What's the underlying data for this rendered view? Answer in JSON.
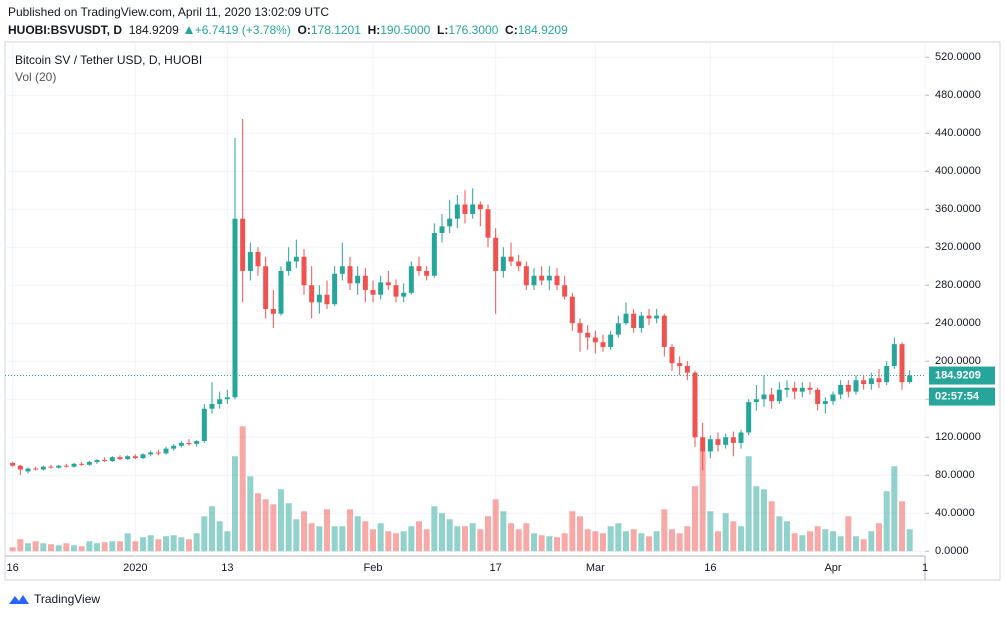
{
  "header": {
    "published": "Published on TradingView.com, April 11, 2020 13:02:09 UTC",
    "symbol": "HUOBI:BSVUSDT, D",
    "price": "184.9209",
    "change": "+6.7419 (+3.78%)",
    "o_label": "O:",
    "o": "178.1201",
    "h_label": "H:",
    "h": "190.5000",
    "l_label": "L:",
    "l": "176.3000",
    "c_label": "C:",
    "c": "184.9209"
  },
  "chart_data": {
    "type": "candlestick",
    "title": "Bitcoin SV / Tether USD, D, HUOBI",
    "volume_label": "Vol (20)",
    "last_price_label": "184.9209",
    "countdown": "02:57:54",
    "up_color": "#26a69a",
    "down_color": "#ef5350",
    "grid": true,
    "xlim": [
      -1,
      119
    ],
    "xticks": [
      {
        "value": 0,
        "label": "16"
      },
      {
        "value": 16,
        "label": "2020"
      },
      {
        "value": 28,
        "label": "13"
      },
      {
        "value": 47,
        "label": "Feb"
      },
      {
        "value": 63,
        "label": "17"
      },
      {
        "value": 76,
        "label": "Mar"
      },
      {
        "value": 91,
        "label": "16"
      },
      {
        "value": 107,
        "label": "Apr"
      },
      {
        "value": 119,
        "label": "1"
      }
    ],
    "ylim": [
      -5,
      536
    ],
    "yticks": [
      {
        "value": 0,
        "label": "0.0000"
      },
      {
        "value": 40,
        "label": "40.0000"
      },
      {
        "value": 80,
        "label": "80.0000"
      },
      {
        "value": 120,
        "label": "120.0000"
      },
      {
        "value": 160,
        "label": "160.0000"
      },
      {
        "value": 200,
        "label": "200.0000"
      },
      {
        "value": 240,
        "label": "240.0000"
      },
      {
        "value": 280,
        "label": "280.0000"
      },
      {
        "value": 320,
        "label": "320.0000"
      },
      {
        "value": 360,
        "label": "360.0000"
      },
      {
        "value": 400,
        "label": "400.0000"
      },
      {
        "value": 440,
        "label": "440.0000"
      },
      {
        "value": 480,
        "label": "480.0000"
      },
      {
        "value": 520,
        "label": "520.0000"
      }
    ],
    "open": [
      93,
      90,
      84,
      87,
      86,
      89,
      88,
      90,
      89,
      92,
      91,
      94,
      96,
      95,
      99,
      97,
      100,
      98,
      102,
      104,
      103,
      108,
      111,
      114,
      113,
      116,
      150,
      155,
      160,
      162,
      350,
      295,
      315,
      300,
      255,
      250,
      295,
      305,
      310,
      280,
      262,
      270,
      260,
      292,
      300,
      282,
      290,
      275,
      270,
      283,
      280,
      268,
      272,
      300,
      295,
      290,
      335,
      342,
      350,
      365,
      355,
      365,
      360,
      330,
      295,
      310,
      305,
      300,
      280,
      290,
      285,
      290,
      280,
      268,
      240,
      230,
      225,
      220,
      215,
      228,
      240,
      250,
      235,
      248,
      245,
      248,
      215,
      198,
      195,
      188,
      120,
      105,
      118,
      112,
      120,
      114,
      125,
      157,
      160,
      165,
      158,
      170,
      172,
      168,
      172,
      170,
      155,
      158,
      165,
      175,
      168,
      180,
      176,
      182,
      178,
      195,
      218,
      178.1201
    ],
    "high": [
      94,
      91,
      88,
      89,
      90,
      91,
      91,
      92,
      93,
      94,
      95,
      97,
      99,
      100,
      101,
      101,
      102,
      103,
      106,
      107,
      110,
      113,
      116,
      118,
      117,
      155,
      178,
      168,
      170,
      435,
      455,
      325,
      320,
      310,
      275,
      300,
      320,
      328,
      318,
      300,
      280,
      285,
      300,
      325,
      310,
      300,
      298,
      285,
      290,
      295,
      286,
      282,
      305,
      310,
      300,
      345,
      355,
      370,
      375,
      380,
      382,
      368,
      365,
      340,
      320,
      325,
      312,
      305,
      298,
      300,
      300,
      298,
      290,
      272,
      245,
      238,
      232,
      228,
      232,
      248,
      262,
      255,
      252,
      255,
      255,
      250,
      218,
      205,
      200,
      190,
      135,
      122,
      125,
      124,
      126,
      128,
      160,
      175,
      185,
      172,
      178,
      180,
      178,
      178,
      178,
      172,
      162,
      168,
      180,
      180,
      185,
      185,
      188,
      192,
      200,
      225,
      220,
      190.5
    ],
    "low": [
      89,
      80,
      82,
      85,
      85,
      87,
      87,
      88,
      88,
      90,
      90,
      92,
      94,
      94,
      96,
      96,
      97,
      97,
      100,
      101,
      102,
      106,
      109,
      111,
      110,
      114,
      145,
      150,
      155,
      160,
      262,
      285,
      290,
      245,
      235,
      248,
      290,
      298,
      270,
      245,
      250,
      255,
      258,
      285,
      275,
      270,
      262,
      262,
      265,
      275,
      262,
      262,
      270,
      290,
      285,
      288,
      325,
      335,
      340,
      345,
      350,
      342,
      320,
      250,
      288,
      300,
      295,
      275,
      275,
      280,
      275,
      275,
      265,
      232,
      210,
      212,
      208,
      210,
      212,
      225,
      238,
      230,
      230,
      238,
      240,
      205,
      190,
      185,
      180,
      110,
      85,
      98,
      105,
      108,
      100,
      108,
      122,
      148,
      152,
      150,
      155,
      162,
      160,
      162,
      165,
      148,
      145,
      154,
      160,
      162,
      165,
      170,
      170,
      172,
      175,
      192,
      170,
      176.3
    ],
    "close": [
      90,
      86,
      87,
      86,
      89,
      88,
      90,
      89,
      92,
      91,
      94,
      96,
      95,
      99,
      97,
      100,
      98,
      102,
      104,
      103,
      108,
      111,
      114,
      113,
      116,
      150,
      155,
      160,
      162,
      350,
      295,
      315,
      300,
      255,
      250,
      295,
      305,
      310,
      280,
      262,
      270,
      260,
      292,
      300,
      282,
      290,
      275,
      270,
      283,
      280,
      268,
      272,
      300,
      295,
      290,
      335,
      342,
      350,
      365,
      355,
      365,
      360,
      330,
      295,
      310,
      305,
      300,
      280,
      290,
      285,
      290,
      280,
      268,
      240,
      230,
      225,
      220,
      215,
      228,
      240,
      250,
      235,
      248,
      245,
      248,
      215,
      198,
      195,
      188,
      120,
      105,
      118,
      112,
      120,
      114,
      125,
      157,
      160,
      165,
      158,
      170,
      172,
      168,
      172,
      170,
      155,
      158,
      165,
      175,
      168,
      180,
      176,
      182,
      178,
      195,
      218,
      178,
      184.9209
    ],
    "volume": [
      4,
      12,
      8,
      10,
      8,
      7,
      6,
      8,
      6,
      5,
      10,
      8,
      9,
      10,
      10,
      18,
      10,
      14,
      16,
      12,
      15,
      16,
      14,
      12,
      18,
      35,
      45,
      30,
      20,
      95,
      125,
      75,
      58,
      52,
      47,
      62,
      48,
      32,
      40,
      28,
      25,
      42,
      25,
      25,
      42,
      35,
      30,
      22,
      28,
      20,
      18,
      20,
      25,
      30,
      22,
      45,
      38,
      32,
      25,
      25,
      28,
      22,
      35,
      52,
      40,
      28,
      22,
      28,
      18,
      16,
      15,
      14,
      18,
      40,
      35,
      22,
      20,
      18,
      25,
      28,
      20,
      22,
      18,
      15,
      20,
      42,
      22,
      18,
      25,
      65,
      100,
      40,
      20,
      38,
      30,
      25,
      95,
      65,
      62,
      50,
      35,
      30,
      18,
      16,
      20,
      25,
      22,
      20,
      15,
      35,
      15,
      12,
      20,
      28,
      60,
      85,
      50,
      22
    ]
  }
}
